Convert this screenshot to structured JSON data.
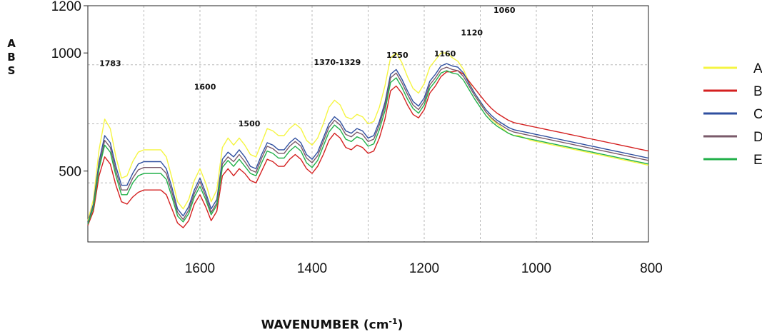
{
  "chart_data": {
    "type": "line",
    "ylabel_letters": [
      "A",
      "B",
      "S"
    ],
    "xlabel": {
      "main": "WAVENUMBER (cm",
      "sup": "-1",
      "end": ")"
    },
    "xlim": [
      1800,
      800
    ],
    "ylim": [
      200,
      1200
    ],
    "x_tick_values": [
      1600,
      1400,
      1200,
      1000,
      800
    ],
    "x_tick_labels": [
      "1600",
      "1400",
      "1200",
      "1000",
      "800"
    ],
    "y_tick_values": [
      500,
      1000,
      1200
    ],
    "y_tick_labels": [
      "500",
      "1000",
      "1200"
    ],
    "y_gridlines": [
      450,
      700,
      950,
      1200
    ],
    "x_gridlines": [
      1800,
      1700,
      1600,
      1500,
      1400,
      1300,
      1200,
      1100,
      1000,
      900,
      800
    ],
    "grid": true,
    "legend_position": "right",
    "annotations": [
      {
        "text": "1783",
        "x": 1760,
        "y": 945
      },
      {
        "text": "1600",
        "x": 1591,
        "y": 845
      },
      {
        "text": "1500",
        "x": 1512,
        "y": 690
      },
      {
        "text": "1370-1329",
        "x": 1355,
        "y": 950
      },
      {
        "text": "1250",
        "x": 1248,
        "y": 980
      },
      {
        "text": "1160",
        "x": 1163,
        "y": 985
      },
      {
        "text": "1120",
        "x": 1115,
        "y": 1075
      },
      {
        "text": "1060",
        "x": 1057,
        "y": 1170
      }
    ],
    "x": [
      1800,
      1790,
      1780,
      1770,
      1760,
      1750,
      1740,
      1730,
      1720,
      1710,
      1700,
      1690,
      1680,
      1670,
      1660,
      1650,
      1640,
      1630,
      1620,
      1610,
      1600,
      1590,
      1580,
      1570,
      1560,
      1550,
      1540,
      1530,
      1520,
      1510,
      1500,
      1490,
      1480,
      1470,
      1460,
      1450,
      1440,
      1430,
      1420,
      1410,
      1400,
      1390,
      1380,
      1370,
      1360,
      1350,
      1340,
      1330,
      1320,
      1310,
      1300,
      1290,
      1280,
      1270,
      1260,
      1250,
      1240,
      1230,
      1220,
      1210,
      1200,
      1190,
      1180,
      1170,
      1160,
      1150,
      1140,
      1130,
      1120,
      1110,
      1100,
      1090,
      1080,
      1070,
      1060,
      1050,
      1040,
      1030,
      1020,
      1010,
      1000,
      990,
      980,
      970,
      960,
      950,
      940,
      930,
      920,
      910,
      900,
      890,
      880,
      870,
      860,
      850,
      840,
      830,
      820,
      810,
      800
    ],
    "series": [
      {
        "name": "A",
        "color": "#f5f542",
        "values": [
          290,
          380,
          590,
          720,
          680,
          560,
          470,
          480,
          540,
          580,
          590,
          590,
          590,
          590,
          560,
          470,
          370,
          340,
          380,
          460,
          510,
          450,
          370,
          420,
          600,
          640,
          610,
          640,
          610,
          570,
          560,
          620,
          680,
          670,
          650,
          650,
          680,
          700,
          680,
          630,
          610,
          640,
          700,
          770,
          800,
          780,
          730,
          720,
          740,
          730,
          700,
          710,
          770,
          860,
          980,
          1000,
          960,
          900,
          850,
          830,
          870,
          940,
          970,
          1000,
          1000,
          980,
          965,
          930,
          875,
          830,
          790,
          750,
          720,
          700,
          680,
          660,
          650,
          650,
          640,
          630,
          625,
          620,
          615,
          610,
          605,
          600,
          595,
          590,
          585,
          580,
          575,
          570,
          565,
          560,
          555,
          550,
          545,
          540,
          535,
          530,
          525
        ]
      },
      {
        "name": "B",
        "color": "#d42020",
        "values": [
          270,
          330,
          480,
          560,
          530,
          440,
          370,
          360,
          390,
          410,
          420,
          420,
          420,
          420,
          400,
          340,
          280,
          260,
          290,
          360,
          400,
          350,
          290,
          330,
          480,
          510,
          480,
          510,
          490,
          460,
          450,
          500,
          550,
          540,
          520,
          520,
          550,
          570,
          550,
          510,
          490,
          520,
          570,
          630,
          660,
          640,
          600,
          590,
          610,
          600,
          575,
          585,
          640,
          720,
          840,
          860,
          830,
          780,
          740,
          725,
          760,
          830,
          860,
          900,
          920,
          920,
          925,
          910,
          880,
          850,
          820,
          790,
          765,
          745,
          730,
          715,
          705,
          700,
          695,
          690,
          685,
          680,
          675,
          670,
          665,
          660,
          655,
          650,
          645,
          640,
          635,
          630,
          625,
          620,
          615,
          610,
          605,
          600,
          595,
          590,
          585
        ]
      },
      {
        "name": "C",
        "color": "#2f4f9f",
        "values": [
          280,
          360,
          540,
          650,
          620,
          520,
          440,
          440,
          490,
          530,
          540,
          540,
          540,
          540,
          510,
          430,
          340,
          310,
          350,
          420,
          470,
          410,
          340,
          380,
          550,
          580,
          560,
          590,
          560,
          520,
          510,
          570,
          620,
          610,
          590,
          590,
          620,
          640,
          620,
          570,
          550,
          580,
          640,
          700,
          730,
          710,
          670,
          660,
          680,
          670,
          640,
          650,
          710,
          790,
          910,
          930,
          890,
          840,
          795,
          775,
          810,
          880,
          910,
          945,
          955,
          945,
          940,
          915,
          870,
          830,
          795,
          760,
          735,
          715,
          700,
          685,
          675,
          670,
          665,
          660,
          655,
          650,
          645,
          640,
          635,
          630,
          625,
          620,
          615,
          610,
          605,
          600,
          595,
          590,
          585,
          580,
          575,
          570,
          565,
          560,
          555
        ]
      },
      {
        "name": "D",
        "color": "#7a5a6a",
        "values": [
          275,
          350,
          520,
          630,
          600,
          500,
          420,
          420,
          470,
          505,
          515,
          515,
          515,
          515,
          490,
          410,
          325,
          295,
          335,
          405,
          455,
          395,
          325,
          365,
          530,
          560,
          540,
          570,
          540,
          505,
          495,
          555,
          605,
          595,
          575,
          575,
          605,
          625,
          605,
          555,
          535,
          565,
          625,
          685,
          715,
          695,
          655,
          645,
          665,
          655,
          625,
          635,
          695,
          775,
          895,
          915,
          875,
          825,
          780,
          760,
          795,
          865,
          895,
          930,
          940,
          930,
          925,
          900,
          860,
          820,
          785,
          750,
          725,
          705,
          690,
          675,
          665,
          660,
          655,
          650,
          645,
          640,
          635,
          630,
          625,
          620,
          615,
          610,
          605,
          600,
          595,
          590,
          585,
          580,
          575,
          570,
          565,
          560,
          555,
          550,
          545
        ]
      },
      {
        "name": "E",
        "color": "#22b04a",
        "values": [
          275,
          345,
          510,
          610,
          580,
          480,
          400,
          400,
          450,
          480,
          490,
          490,
          490,
          490,
          465,
          390,
          310,
          285,
          320,
          390,
          435,
          380,
          315,
          355,
          515,
          545,
          520,
          550,
          520,
          490,
          480,
          535,
          585,
          575,
          555,
          555,
          585,
          605,
          585,
          535,
          515,
          545,
          605,
          665,
          695,
          675,
          635,
          625,
          645,
          635,
          605,
          615,
          675,
          755,
          875,
          895,
          855,
          805,
          765,
          745,
          780,
          850,
          880,
          915,
          925,
          915,
          910,
          885,
          845,
          805,
          770,
          735,
          710,
          690,
          675,
          660,
          650,
          645,
          640,
          635,
          630,
          625,
          620,
          615,
          610,
          605,
          600,
          595,
          590,
          585,
          580,
          575,
          570,
          565,
          560,
          555,
          550,
          545,
          540,
          535,
          530
        ]
      }
    ]
  }
}
